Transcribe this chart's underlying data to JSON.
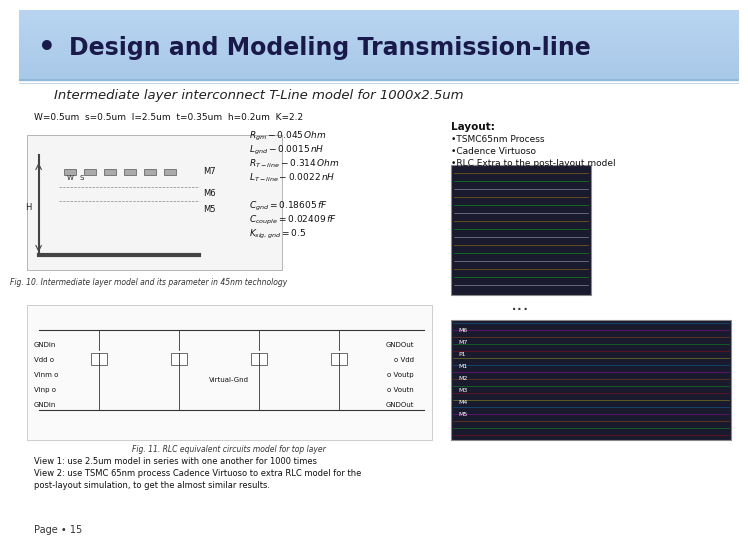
{
  "title": "Design and Modeling Transmission-line",
  "subtitle": "Intermediate layer interconnect T-Line model for 1000x2.5um",
  "params_line": "W=0.5um  s=0.5um  l=2.5um  t=0.35um  h=0.2um  K=2.2",
  "layout_title": "Layout:",
  "layout_items": [
    "•TSMC65nm Process",
    "•Cadence Virtuoso",
    "•RLC Extra to the post-layout model"
  ],
  "fig10_caption": "Fig. 10. Intermediate layer model and its parameter in 45nm technology",
  "fig11_caption": "Fig. 11. RLC equivalent circuits model for top layer",
  "view1": "View 1: use 2.5um model in series with one another for 1000 times",
  "view2": "View 2: use TSMC 65nm process Cadence Virtuoso to extra RLC model for the",
  "view2b": "post-layout simulation, to get the almost similar results.",
  "page": "Page • 15",
  "header_grad_top": "#a8c8e8",
  "header_grad_bottom": "#c8dff0",
  "bg_color": "#ffffff",
  "dots_text": "...",
  "formula_texts": [
    "$R_{gm} - 0.045\\,Ohm$",
    "$L_{gnd} - 0.0015\\,nH$",
    "$R_{T-line} - 0.314\\,Ohm$",
    "$L_{T-line} - 0.0022\\,nH$"
  ],
  "formula2_texts": [
    "$C_{gnd} = 0.18605\\,fF$",
    "$C_{couple} = 0.02409\\,fF$",
    "$K_{sig,gnd} = 0.5$"
  ]
}
